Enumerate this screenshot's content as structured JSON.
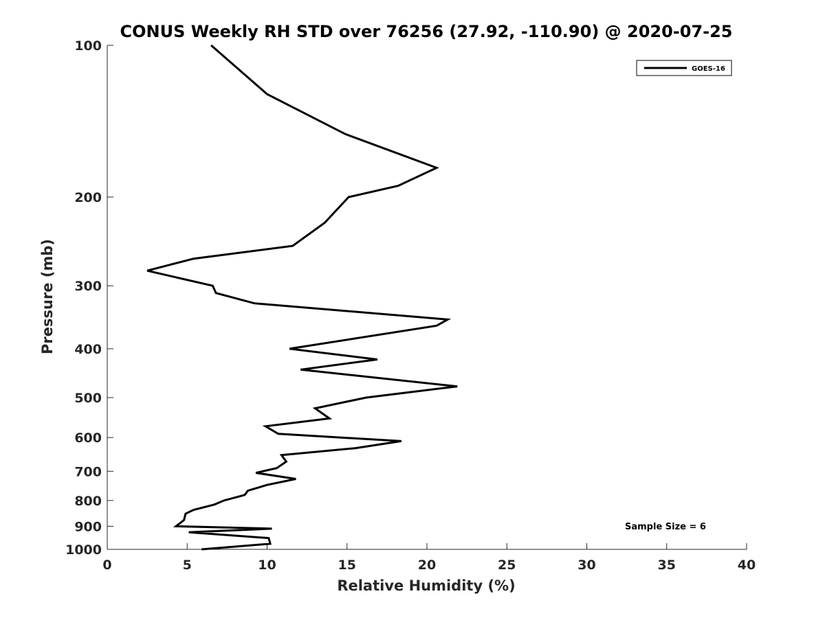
{
  "chart_data": {
    "type": "line",
    "title": "CONUS Weekly RH STD over 76256 (27.92, -110.90) @ 2020-07-25",
    "xlabel": "Relative Humidity (%)",
    "ylabel": "Pressure (mb)",
    "xlim": [
      0,
      40
    ],
    "ylim": [
      100,
      1000
    ],
    "y_scale": "log",
    "y_reversed": true,
    "x_ticks": [
      0,
      5,
      10,
      15,
      20,
      25,
      30,
      35,
      40
    ],
    "y_ticks": [
      100,
      200,
      300,
      400,
      500,
      600,
      700,
      800,
      900,
      1000
    ],
    "grid": false,
    "legend_position": "top-right",
    "annotation": "Sample Size = 6",
    "series": [
      {
        "name": "GOES-16",
        "color": "#000000",
        "points": [
          [
            6.5,
            100
          ],
          [
            10.0,
            125
          ],
          [
            14.9,
            150
          ],
          [
            20.6,
            175
          ],
          [
            18.2,
            190
          ],
          [
            15.1,
            200
          ],
          [
            13.6,
            225
          ],
          [
            11.6,
            250
          ],
          [
            5.4,
            265
          ],
          [
            2.5,
            280
          ],
          [
            6.6,
            300
          ],
          [
            6.8,
            310
          ],
          [
            9.2,
            325
          ],
          [
            21.3,
            350
          ],
          [
            20.6,
            360
          ],
          [
            11.4,
            400
          ],
          [
            16.9,
            420
          ],
          [
            12.1,
            440
          ],
          [
            21.9,
            475
          ],
          [
            16.2,
            500
          ],
          [
            13.0,
            525
          ],
          [
            13.9,
            550
          ],
          [
            9.9,
            570
          ],
          [
            10.7,
            590
          ],
          [
            18.4,
            610
          ],
          [
            15.5,
            630
          ],
          [
            10.9,
            650
          ],
          [
            11.2,
            670
          ],
          [
            10.6,
            690
          ],
          [
            9.3,
            705
          ],
          [
            11.8,
            725
          ],
          [
            10.0,
            745
          ],
          [
            8.8,
            765
          ],
          [
            8.6,
            780
          ],
          [
            7.3,
            800
          ],
          [
            6.7,
            815
          ],
          [
            5.4,
            835
          ],
          [
            4.9,
            850
          ],
          [
            4.8,
            875
          ],
          [
            4.3,
            900
          ],
          [
            10.3,
            910
          ],
          [
            5.1,
            925
          ],
          [
            10.1,
            950
          ],
          [
            10.2,
            975
          ],
          [
            5.9,
            1000
          ]
        ]
      }
    ]
  }
}
